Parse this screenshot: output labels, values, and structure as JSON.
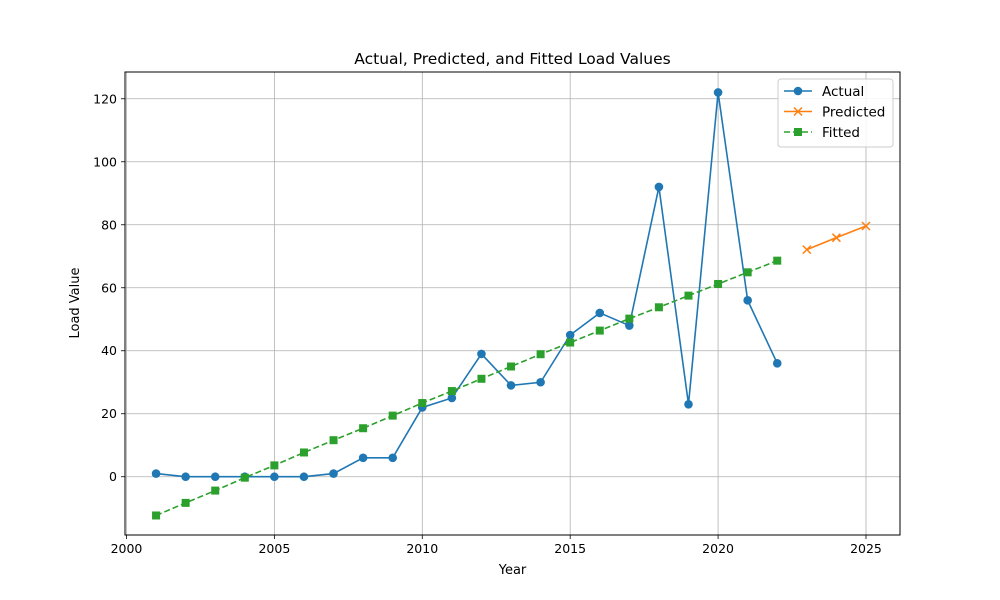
{
  "chart_data": {
    "type": "line",
    "title": "Actual, Predicted, and Fitted Load Values",
    "xlabel": "Year",
    "ylabel": "Load Value",
    "xlim": [
      1999.95,
      2026.15
    ],
    "ylim": [
      -18.5,
      128.5
    ],
    "xticks": [
      2000,
      2005,
      2010,
      2015,
      2020,
      2025
    ],
    "yticks": [
      0,
      20,
      40,
      60,
      80,
      100,
      120
    ],
    "grid": true,
    "legend_position": "top-right",
    "series": [
      {
        "name": "Actual",
        "color": "#1f77b4",
        "marker": "circle",
        "linestyle": "solid",
        "x": [
          2001,
          2002,
          2003,
          2004,
          2005,
          2006,
          2007,
          2008,
          2009,
          2010,
          2011,
          2012,
          2013,
          2014,
          2015,
          2016,
          2017,
          2018,
          2019,
          2020,
          2021,
          2022
        ],
        "y": [
          1,
          0,
          0,
          0,
          0,
          0,
          1,
          6,
          6,
          22,
          25,
          39,
          29,
          30,
          45,
          52,
          48,
          92,
          23,
          122,
          56,
          36
        ]
      },
      {
        "name": "Predicted",
        "color": "#ff7f0e",
        "marker": "x",
        "linestyle": "solid",
        "x": [
          2023,
          2024,
          2025
        ],
        "y": [
          72.1,
          75.9,
          79.6
        ]
      },
      {
        "name": "Fitted",
        "color": "#2ca02c",
        "marker": "square",
        "linestyle": "dashed",
        "x": [
          2001,
          2002,
          2003,
          2004,
          2005,
          2006,
          2007,
          2008,
          2009,
          2010,
          2011,
          2012,
          2013,
          2014,
          2015,
          2016,
          2017,
          2018,
          2019,
          2020,
          2021,
          2022
        ],
        "y": [
          -12.3,
          -8.3,
          -4.4,
          -0.3,
          3.6,
          7.7,
          11.6,
          15.4,
          19.4,
          23.4,
          27.2,
          31.1,
          35.0,
          38.9,
          42.6,
          46.4,
          50.2,
          53.8,
          57.5,
          61.2,
          64.9,
          68.6
        ]
      }
    ]
  }
}
